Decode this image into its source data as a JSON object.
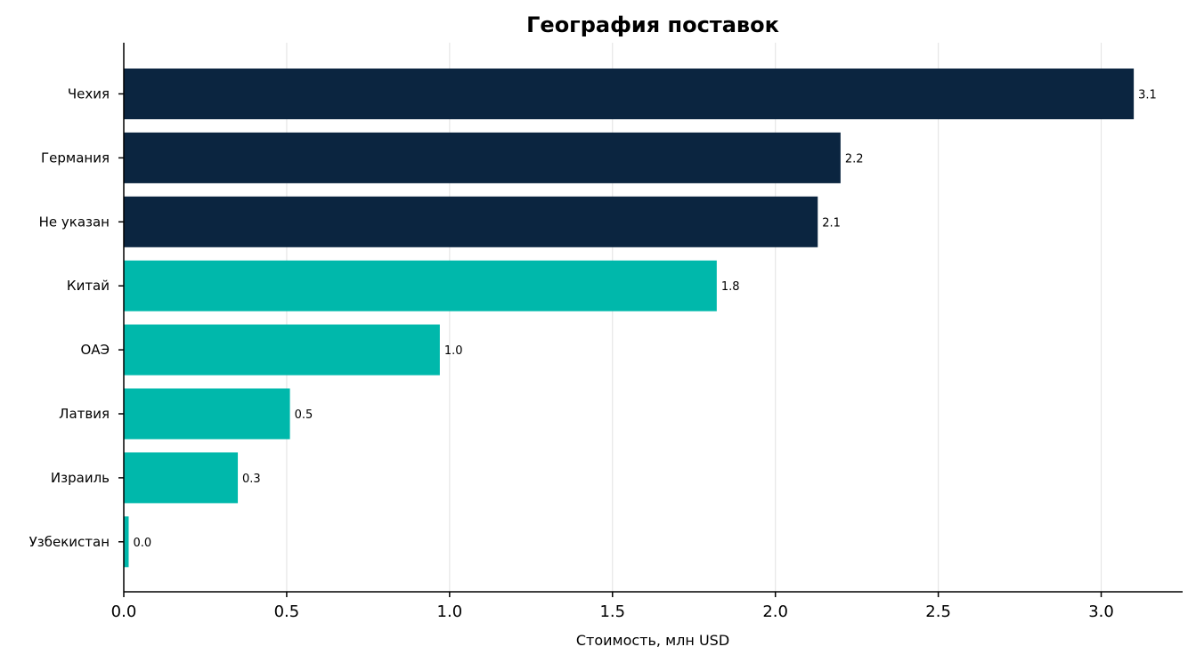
{
  "chart_data": {
    "type": "bar",
    "orientation": "horizontal",
    "title": "География поставок",
    "xlabel": "Стоимость, млн USD",
    "ylabel": "",
    "xlim": [
      0,
      3.25
    ],
    "x_ticks": [
      0.0,
      0.5,
      1.0,
      1.5,
      2.0,
      2.5,
      3.0
    ],
    "x_tick_labels": [
      "0.0",
      "0.5",
      "1.0",
      "1.5",
      "2.0",
      "2.5",
      "3.0"
    ],
    "grid": "vertical",
    "categories": [
      "Чехия",
      "Германия",
      "Не указан",
      "Китай",
      "ОАЭ",
      "Латвия",
      "Израиль",
      "Узбекистан"
    ],
    "values": [
      3.1,
      2.2,
      2.13,
      1.82,
      0.97,
      0.51,
      0.35,
      0.015
    ],
    "data_labels": [
      "3.1",
      "2.2",
      "2.1",
      "1.8",
      "1.0",
      "0.5",
      "0.3",
      "0.0"
    ],
    "highlight_count": 3,
    "colors": {
      "highlight": "#0b2540",
      "normal": "#00b8ab",
      "grid": "#e6e6e6",
      "axis": "#000000"
    }
  }
}
